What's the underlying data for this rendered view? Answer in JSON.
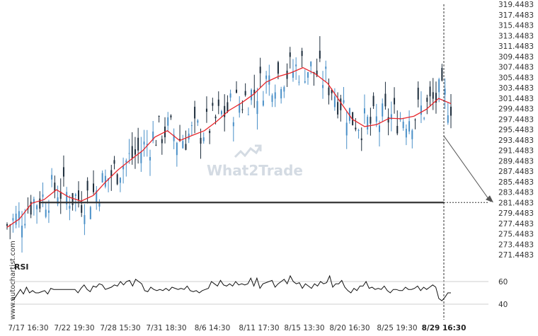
{
  "chart_data": {
    "type": "candlestick",
    "price_axis": {
      "labels": [
        "319.4483",
        "317.4483",
        "315.4483",
        "313.4483",
        "311.4483",
        "309.4483",
        "307.4483",
        "305.4483",
        "303.4483",
        "301.4483",
        "299.4483",
        "297.4483",
        "295.4483",
        "293.4483",
        "291.4483",
        "289.4483",
        "287.4483",
        "285.4483",
        "283.4483",
        "281.4483",
        "279.4483",
        "277.4483",
        "275.4483",
        "273.4483",
        "271.4483"
      ],
      "range": [
        271.4483,
        319.4483
      ]
    },
    "time_axis": {
      "labels": [
        "7/17 16:30",
        "7/22 19:30",
        "7/28 15:30",
        "7/31 18:30",
        "8/6 14:30",
        "8/11 17:30",
        "8/15 13:30",
        "8/20 16:30",
        "8/25 19:30",
        "8/29 16:30"
      ]
    },
    "support_level": 281.4483,
    "forecast": {
      "from": 294.2,
      "to": 281.4483
    },
    "price_series_ma": [
      276.7,
      278.3,
      281.3,
      282.0,
      283.9,
      282.5,
      281.7,
      282.8,
      285.4,
      287.7,
      289.6,
      291.4,
      294.0,
      295.2,
      293.3,
      294.3,
      295.2,
      297.0,
      299.1,
      300.5,
      302.2,
      304.5,
      305.6,
      306.3,
      307.3,
      306.1,
      304.3,
      300.8,
      297.4,
      296.0,
      296.4,
      297.6,
      297.5,
      298.0,
      299.3,
      301.4,
      300.4
    ],
    "rsi": {
      "title": "RSI",
      "levels": [
        60,
        40
      ],
      "labels": [
        "60",
        "40"
      ],
      "range": [
        30,
        70
      ],
      "values": [
        43,
        45,
        49,
        53,
        49,
        55,
        50,
        52,
        50,
        50,
        51,
        52,
        49,
        54,
        53,
        53,
        53,
        53,
        53,
        53,
        53,
        53,
        50,
        54,
        57,
        53,
        51,
        56,
        55,
        58,
        57,
        53,
        54,
        55,
        57,
        56,
        60,
        57,
        60,
        61,
        56,
        62,
        60,
        58,
        52,
        51,
        55,
        53,
        52,
        53,
        52,
        54,
        52,
        55,
        54,
        53,
        54,
        53,
        56,
        52,
        51,
        52,
        50,
        52,
        53,
        54,
        60,
        58,
        56,
        61,
        57,
        56,
        58,
        56,
        60,
        57,
        58,
        57,
        58,
        63,
        56,
        63,
        54,
        58,
        59,
        60,
        61,
        55,
        58,
        60,
        62,
        58,
        65,
        60,
        58,
        59,
        54,
        58,
        56,
        54,
        58,
        56,
        60,
        58,
        59,
        65,
        55,
        58,
        58,
        61,
        55,
        52,
        50,
        54,
        52,
        56,
        56,
        60,
        54,
        55,
        53,
        54,
        53,
        56,
        52,
        50,
        53,
        53,
        52,
        52,
        55,
        53,
        53,
        54,
        56,
        52,
        55,
        53,
        55,
        57,
        55,
        45,
        43,
        46,
        50,
        50
      ]
    },
    "colors": {
      "up": "#4a90c8",
      "down": "#1d2d3c",
      "ma": "#e8262b",
      "support": "#333333",
      "projection": "#555555",
      "rsi": "#111111"
    }
  },
  "watermark": "What2Trade",
  "credit": "www.autochartist.com"
}
